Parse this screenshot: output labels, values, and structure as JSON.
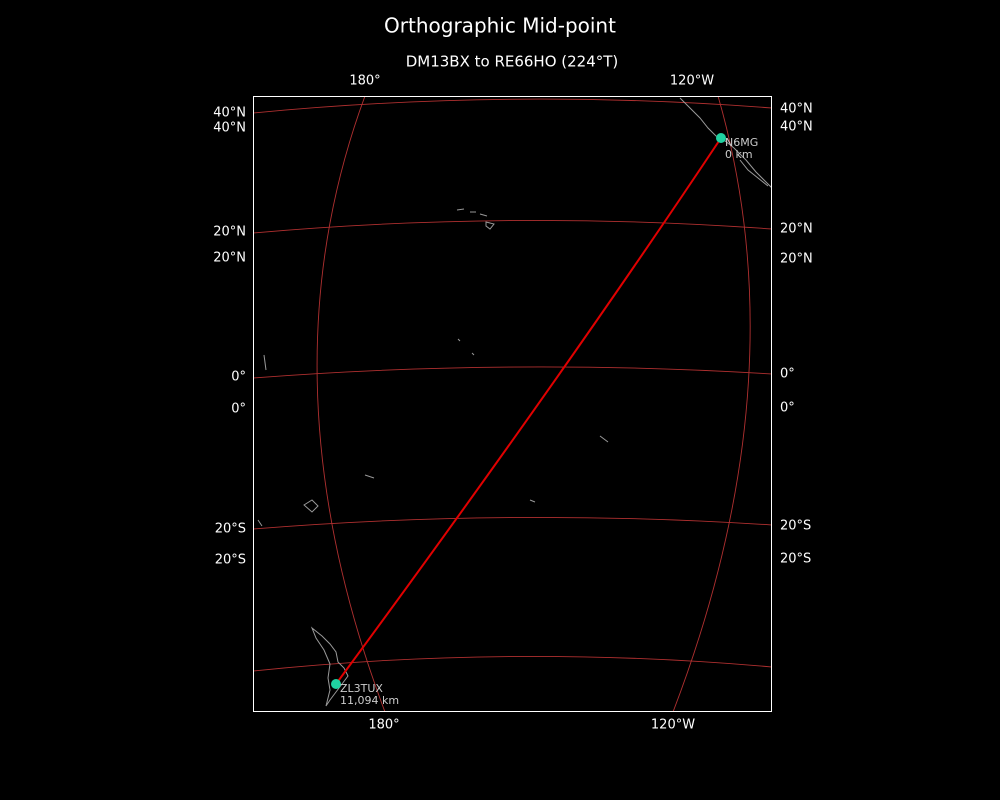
{
  "title": "Orthographic Mid-point",
  "subtitle": "DM13BX to RE66HO (224°T)",
  "top_labels": [
    "180°",
    "120°W"
  ],
  "bottom_labels": [
    "180°",
    "120°W"
  ],
  "left_labels": [
    "40°N",
    "40°N",
    "20°N",
    "20°N",
    "0°",
    "0°",
    "20°S",
    "20°S"
  ],
  "right_labels": [
    "40°N",
    "40°N",
    "20°N",
    "20°N",
    "0°",
    "0°",
    "20°S",
    "20°S"
  ],
  "stations": [
    {
      "call": "N6MG",
      "distance": "0 km"
    },
    {
      "call": "ZL3TUX",
      "distance": "11,094 km"
    }
  ]
}
